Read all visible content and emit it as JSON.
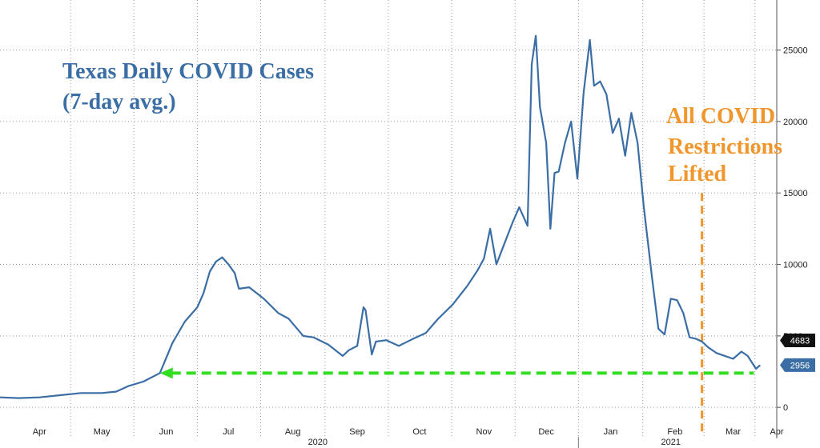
{
  "chart_data": {
    "type": "line",
    "title": "Texas Daily COVID Cases",
    "subtitle": "(7-day avg.)",
    "xlabel": "",
    "ylabel": "",
    "grid": true,
    "y_axis_side": "right",
    "ylim": [
      -1500,
      28500
    ],
    "xlim": [
      "2020-03-27",
      "2021-04-05"
    ],
    "y_ticks": [
      0,
      5000,
      10000,
      15000,
      20000,
      25000
    ],
    "y_tick_labels": [
      "0",
      "5000",
      "10000",
      "15000",
      "20000",
      "25000"
    ],
    "x_ticks": [
      {
        "date": "2020-04-15",
        "label": "Apr"
      },
      {
        "date": "2020-05-15",
        "label": "May"
      },
      {
        "date": "2020-06-15",
        "label": "Jun"
      },
      {
        "date": "2020-07-15",
        "label": "Jul"
      },
      {
        "date": "2020-08-15",
        "label": "Aug"
      },
      {
        "date": "2020-09-15",
        "label": "Sep"
      },
      {
        "date": "2020-10-15",
        "label": "Oct"
      },
      {
        "date": "2020-11-15",
        "label": "Nov"
      },
      {
        "date": "2020-12-15",
        "label": "Dec"
      },
      {
        "date": "2021-01-15",
        "label": "Jan"
      },
      {
        "date": "2021-02-15",
        "label": "Feb"
      },
      {
        "date": "2021-03-15",
        "label": "Mar"
      },
      {
        "date": "2021-04-05",
        "label": "Apr"
      }
    ],
    "year_labels": [
      {
        "date": "2020-08-27",
        "label": "2020"
      },
      {
        "date": "2021-02-13",
        "label": "2021"
      }
    ],
    "series": [
      {
        "color": "#3a6ea5",
        "x": [
          "2020-03-27",
          "2020-04-05",
          "2020-04-15",
          "2020-04-25",
          "2020-05-05",
          "2020-05-15",
          "2020-05-22",
          "2020-05-28",
          "2020-06-04",
          "2020-06-12",
          "2020-06-18",
          "2020-06-24",
          "2020-06-30",
          "2020-07-03",
          "2020-07-06",
          "2020-07-09",
          "2020-07-12",
          "2020-07-15",
          "2020-07-18",
          "2020-07-20",
          "2020-07-25",
          "2020-08-01",
          "2020-08-08",
          "2020-08-13",
          "2020-08-20",
          "2020-08-25",
          "2020-09-01",
          "2020-09-08",
          "2020-09-11",
          "2020-09-15",
          "2020-09-18",
          "2020-09-19",
          "2020-09-22",
          "2020-09-24",
          "2020-09-29",
          "2020-10-05",
          "2020-10-12",
          "2020-10-18",
          "2020-10-24",
          "2020-10-31",
          "2020-11-07",
          "2020-11-12",
          "2020-11-15",
          "2020-11-18",
          "2020-11-21",
          "2020-11-25",
          "2020-11-29",
          "2020-12-02",
          "2020-12-06",
          "2020-12-08",
          "2020-12-10",
          "2020-12-12",
          "2020-12-15",
          "2020-12-17",
          "2020-12-19",
          "2020-12-21",
          "2020-12-24",
          "2020-12-27",
          "2020-12-30",
          "2021-01-02",
          "2021-01-05",
          "2021-01-07",
          "2021-01-10",
          "2021-01-13",
          "2021-01-16",
          "2021-01-19",
          "2021-01-22",
          "2021-01-25",
          "2021-01-28",
          "2021-01-31",
          "2021-02-02",
          "2021-02-04",
          "2021-02-07",
          "2021-02-10",
          "2021-02-13",
          "2021-02-16",
          "2021-02-19",
          "2021-02-22",
          "2021-02-25",
          "2021-02-28",
          "2021-03-03",
          "2021-03-07",
          "2021-03-11",
          "2021-03-15",
          "2021-03-19",
          "2021-03-22",
          "2021-03-26",
          "2021-03-28"
        ],
        "y": [
          700,
          650,
          700,
          850,
          1000,
          1000,
          1100,
          1500,
          1800,
          2400,
          4500,
          6000,
          7000,
          8000,
          9500,
          10200,
          10500,
          10000,
          9400,
          8300,
          8400,
          7600,
          6600,
          6200,
          5000,
          4900,
          4400,
          3600,
          4000,
          4300,
          7000,
          6800,
          3700,
          4600,
          4700,
          4300,
          4800,
          5200,
          6200,
          7200,
          8500,
          9600,
          10400,
          12500,
          10000,
          11500,
          13000,
          14000,
          12700,
          24000,
          26000,
          21000,
          18500,
          12500,
          16400,
          16500,
          18500,
          20000,
          16000,
          22000,
          25700,
          22500,
          22800,
          21900,
          19200,
          20200,
          17600,
          20600,
          18500,
          14000,
          11500,
          9000,
          5500,
          5100,
          7600,
          7500,
          6600,
          4900,
          4800,
          4600,
          4200,
          3800,
          3600,
          3400,
          3900,
          3600,
          2700,
          2956
        ]
      }
    ],
    "reference_lines": [
      {
        "kind": "horizontal",
        "y": 2400,
        "from": "2020-06-12",
        "to": "2021-03-25",
        "color": "#33dd22",
        "style": "dashed",
        "arrow": "left"
      },
      {
        "kind": "vertical",
        "x": "2021-02-28",
        "y_top": 15000,
        "color": "#f0962d",
        "style": "dashed"
      }
    ],
    "annotations": [
      {
        "lines": [
          "All COVID",
          "Restrictions",
          "Lifted"
        ],
        "color": "#f0962d"
      }
    ],
    "value_badges": [
      {
        "value": 4683,
        "label": "4683",
        "color": "#111111"
      },
      {
        "value": 2956,
        "label": "2956",
        "color": "#3a6ea5"
      }
    ]
  }
}
